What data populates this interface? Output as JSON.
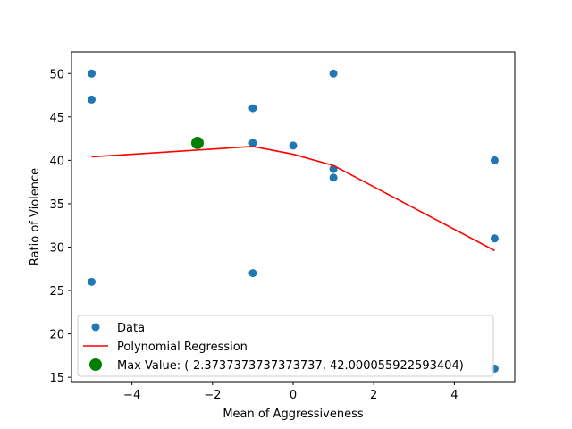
{
  "chart_data": {
    "type": "scatter",
    "title": "",
    "xlabel": "Mean of Aggressiveness",
    "ylabel": "Ratio of Violence",
    "xlim": [
      -5.5,
      5.5
    ],
    "ylim": [
      14.5,
      52.5
    ],
    "x_ticks": [
      -4,
      -2,
      0,
      2,
      4
    ],
    "x_tick_labels": [
      "−4",
      "−2",
      "0",
      "2",
      "4"
    ],
    "y_ticks": [
      15,
      20,
      25,
      30,
      35,
      40,
      45,
      50
    ],
    "y_tick_labels": [
      "15",
      "20",
      "25",
      "30",
      "35",
      "40",
      "45",
      "50"
    ],
    "grid": false,
    "legend_position": "lower-left",
    "series": [
      {
        "name": "Data",
        "kind": "scatter",
        "color": "#1f77b4",
        "points": [
          {
            "x": -5,
            "y": 50
          },
          {
            "x": -5,
            "y": 47
          },
          {
            "x": -5,
            "y": 26
          },
          {
            "x": -1,
            "y": 46
          },
          {
            "x": -1,
            "y": 42
          },
          {
            "x": -1,
            "y": 27
          },
          {
            "x": 0,
            "y": 41.7
          },
          {
            "x": 1,
            "y": 50
          },
          {
            "x": 1,
            "y": 39
          },
          {
            "x": 1,
            "y": 38
          },
          {
            "x": 5,
            "y": 40
          },
          {
            "x": 5,
            "y": 31
          },
          {
            "x": 5,
            "y": 16
          }
        ]
      },
      {
        "name": "Polynomial Regression",
        "kind": "line",
        "color": "#ff0000",
        "points": [
          {
            "x": -5,
            "y": 40.4
          },
          {
            "x": -1,
            "y": 41.6
          },
          {
            "x": 0,
            "y": 40.7
          },
          {
            "x": 1,
            "y": 39.4
          },
          {
            "x": 5,
            "y": 29.6
          }
        ]
      },
      {
        "name": "Max Value: (-2.3737373737373737, 42.000055922593404)",
        "kind": "marker",
        "color": "#008000",
        "points": [
          {
            "x": -2.3737373737373737,
            "y": 42.000055922593404
          }
        ]
      }
    ]
  }
}
